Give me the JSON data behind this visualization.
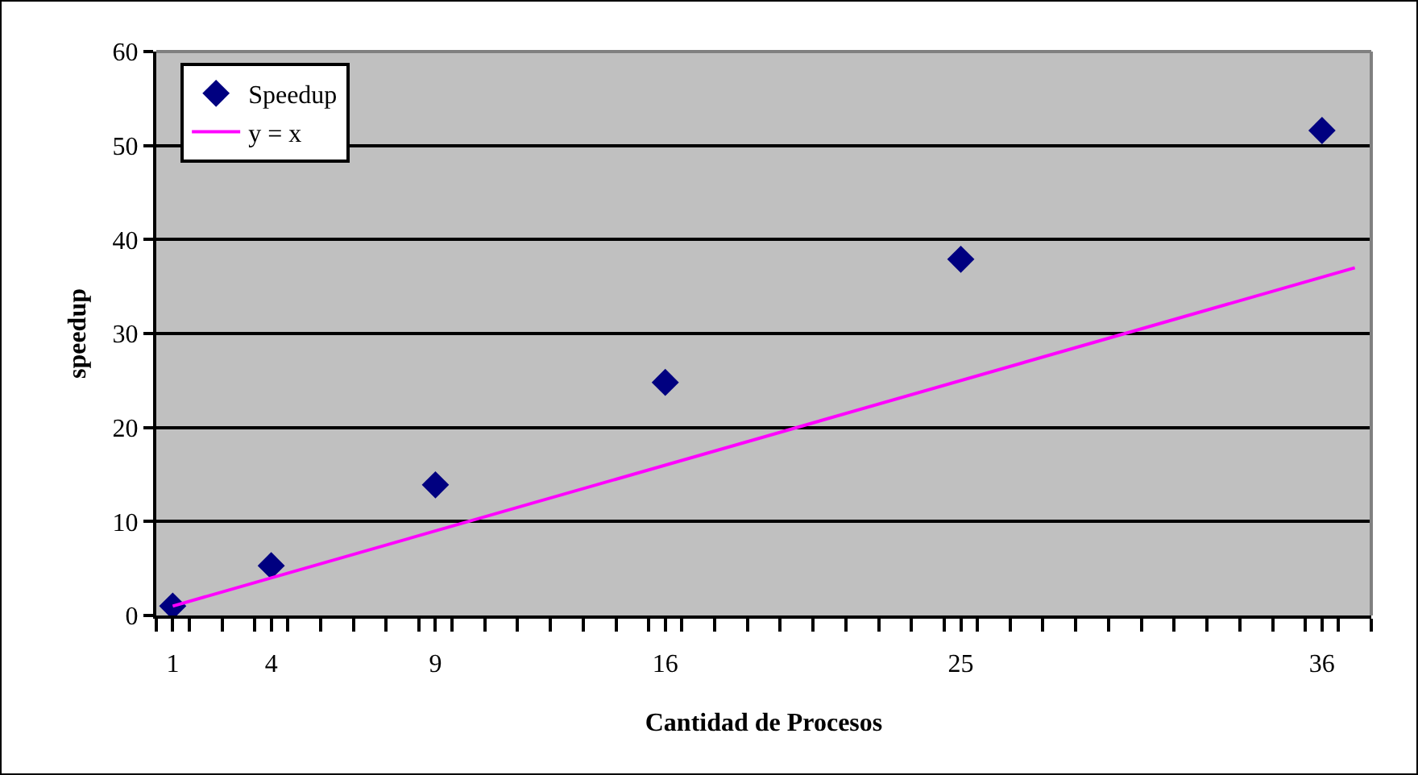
{
  "chart_data": {
    "type": "scatter",
    "xlabel": "Cantidad de Procesos",
    "ylabel": "speedup",
    "series": [
      {
        "name": "Speedup",
        "color": "#000080",
        "x": [
          1,
          4,
          9,
          16,
          25,
          36
        ],
        "values": [
          1,
          5.3,
          13.9,
          24.8,
          37.9,
          51.6
        ]
      },
      {
        "name": "y = x",
        "type": "line",
        "marker": "none",
        "color": "#ff00ff",
        "x": [
          1,
          37
        ],
        "values": [
          1,
          37
        ]
      }
    ],
    "xlim": [
      0.5,
      37.5
    ],
    "xticks": [
      {
        "value": 0.5,
        "label": null
      },
      1,
      {
        "value": 1.5,
        "label": null
      },
      {
        "value": 2.5,
        "label": null
      },
      {
        "value": 3.5,
        "label": null
      },
      4,
      {
        "value": 4.5,
        "label": null
      },
      {
        "value": 5.5,
        "label": null
      },
      {
        "value": 6.5,
        "label": null
      },
      {
        "value": 7.5,
        "label": null
      },
      {
        "value": 8.5,
        "label": null
      },
      9,
      {
        "value": 9.5,
        "label": null
      },
      {
        "value": 10.5,
        "label": null
      },
      {
        "value": 11.5,
        "label": null
      },
      {
        "value": 12.5,
        "label": null
      },
      {
        "value": 13.5,
        "label": null
      },
      {
        "value": 14.5,
        "label": null
      },
      {
        "value": 15.5,
        "label": null
      },
      16,
      {
        "value": 16.5,
        "label": null
      },
      {
        "value": 17.5,
        "label": null
      },
      {
        "value": 18.5,
        "label": null
      },
      {
        "value": 19.5,
        "label": null
      },
      {
        "value": 20.5,
        "label": null
      },
      {
        "value": 21.5,
        "label": null
      },
      {
        "value": 22.5,
        "label": null
      },
      {
        "value": 23.5,
        "label": null
      },
      {
        "value": 24.5,
        "label": null
      },
      25,
      {
        "value": 25.5,
        "label": null
      },
      {
        "value": 26.5,
        "label": null
      },
      {
        "value": 27.5,
        "label": null
      },
      {
        "value": 28.5,
        "label": null
      },
      {
        "value": 29.5,
        "label": null
      },
      {
        "value": 30.5,
        "label": null
      },
      {
        "value": 31.5,
        "label": null
      },
      {
        "value": 32.5,
        "label": null
      },
      {
        "value": 33.5,
        "label": null
      },
      {
        "value": 34.5,
        "label": null
      },
      {
        "value": 35.5,
        "label": null
      },
      36,
      {
        "value": 36.5,
        "label": null
      },
      {
        "value": 37.5,
        "label": null
      }
    ],
    "ylim": [
      0,
      60
    ],
    "yticks": [
      0,
      10,
      20,
      30,
      40,
      50,
      60
    ],
    "grid": "y",
    "legend": "top left",
    "marker": "diamond"
  }
}
